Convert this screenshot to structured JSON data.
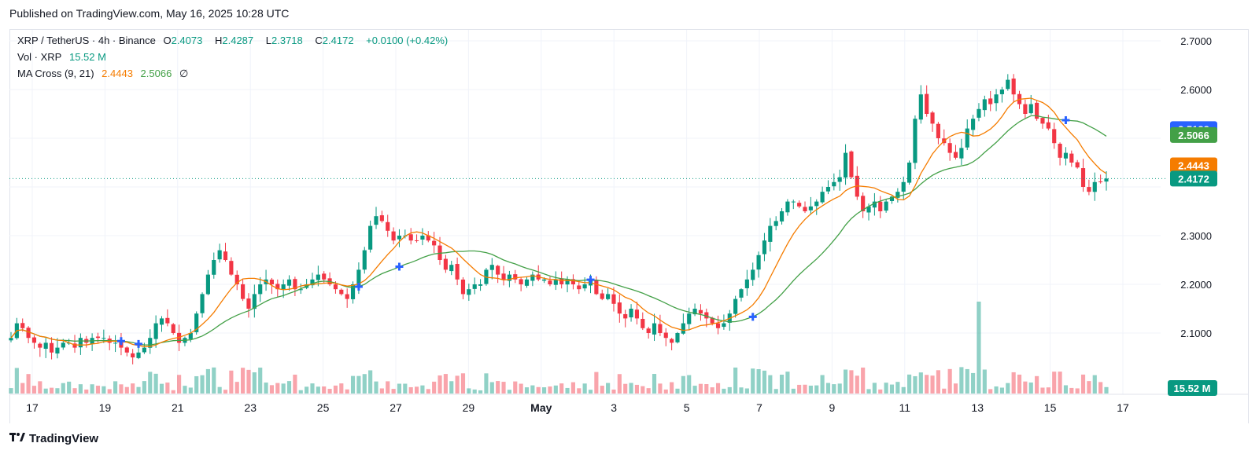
{
  "header": {
    "published": "Published on TradingView.com, May 16, 2025 10:28 UTC"
  },
  "legend": {
    "symbol": "XRP / TetherUS · 4h · Binance",
    "o_label": "O",
    "o_value": "2.4073",
    "h_label": "H",
    "h_value": "2.4287",
    "l_label": "L",
    "l_value": "2.3718",
    "c_label": "C",
    "c_value": "2.4172",
    "change": "+0.0100 (+0.42%)",
    "vol_label": "Vol · XRP",
    "vol_value": "15.52 M",
    "ma_label": "MA Cross (9, 21)",
    "ma_fast": "2.4443",
    "ma_slow": "2.5066",
    "ma_icon": "∅"
  },
  "footer": {
    "brand": "TradingView",
    "logo_icon": "tradingview-logo-icon"
  },
  "colors": {
    "up": "#089981",
    "down": "#f23645",
    "ma_fast": "#f57c00",
    "ma_slow": "#43a047",
    "cross": "#2962ff"
  },
  "chart_data": {
    "type": "candlestick",
    "symbol": "XRP / TetherUS",
    "timeframe": "4h",
    "y_ticks": [
      "2.7000",
      "2.6000",
      "2.3000",
      "2.2000",
      "2.1000"
    ],
    "ylim": [
      2.03,
      2.72
    ],
    "x_tick_labels": [
      "17",
      "19",
      "21",
      "23",
      "25",
      "27",
      "29",
      "May",
      "3",
      "5",
      "7",
      "9",
      "11",
      "13",
      "15",
      "17"
    ],
    "price_tags": [
      {
        "value": "2.5188",
        "color": "#2962ff"
      },
      {
        "value": "2.5066",
        "color": "#43a047"
      },
      {
        "value": "2.4443",
        "color": "#f57c00"
      },
      {
        "value": "2.4172",
        "color": "#089981"
      }
    ],
    "volume_tag": "15.52 M",
    "last_close": 2.4172,
    "close": [
      2.09,
      2.12,
      2.11,
      2.09,
      2.08,
      2.07,
      2.08,
      2.06,
      2.07,
      2.08,
      2.08,
      2.07,
      2.09,
      2.08,
      2.09,
      2.09,
      2.09,
      2.08,
      2.08,
      2.07,
      2.06,
      2.05,
      2.06,
      2.07,
      2.09,
      2.12,
      2.13,
      2.12,
      2.1,
      2.08,
      2.09,
      2.1,
      2.14,
      2.18,
      2.22,
      2.25,
      2.27,
      2.25,
      2.22,
      2.2,
      2.17,
      2.15,
      2.18,
      2.2,
      2.21,
      2.2,
      2.19,
      2.2,
      2.21,
      2.19,
      2.19,
      2.2,
      2.21,
      2.22,
      2.21,
      2.2,
      2.19,
      2.18,
      2.17,
      2.2,
      2.23,
      2.27,
      2.32,
      2.34,
      2.33,
      2.31,
      2.29,
      2.3,
      2.3,
      2.29,
      2.29,
      2.3,
      2.29,
      2.28,
      2.25,
      2.23,
      2.24,
      2.21,
      2.18,
      2.19,
      2.2,
      2.2,
      2.23,
      2.24,
      2.22,
      2.21,
      2.22,
      2.21,
      2.2,
      2.21,
      2.22,
      2.21,
      2.21,
      2.2,
      2.21,
      2.2,
      2.21,
      2.2,
      2.19,
      2.2,
      2.21,
      2.18,
      2.17,
      2.18,
      2.16,
      2.14,
      2.13,
      2.15,
      2.13,
      2.11,
      2.1,
      2.12,
      2.1,
      2.09,
      2.08,
      2.1,
      2.12,
      2.14,
      2.15,
      2.14,
      2.13,
      2.12,
      2.11,
      2.12,
      2.14,
      2.17,
      2.19,
      2.21,
      2.23,
      2.26,
      2.29,
      2.32,
      2.33,
      2.35,
      2.37,
      2.37,
      2.36,
      2.35,
      2.36,
      2.37,
      2.39,
      2.4,
      2.41,
      2.42,
      2.47,
      2.42,
      2.38,
      2.35,
      2.36,
      2.37,
      2.35,
      2.37,
      2.38,
      2.39,
      2.41,
      2.45,
      2.54,
      2.59,
      2.55,
      2.53,
      2.5,
      2.49,
      2.47,
      2.46,
      2.48,
      2.52,
      2.54,
      2.56,
      2.58,
      2.57,
      2.59,
      2.6,
      2.62,
      2.59,
      2.57,
      2.55,
      2.57,
      2.54,
      2.53,
      2.52,
      2.49,
      2.46,
      2.47,
      2.45,
      2.44,
      2.4,
      2.39,
      2.41,
      2.41,
      2.4172
    ],
    "ma_fast_last": 2.4443,
    "ma_slow_last": 2.5066,
    "cross_markers": [
      19,
      22,
      60,
      67,
      100,
      128,
      182
    ]
  }
}
